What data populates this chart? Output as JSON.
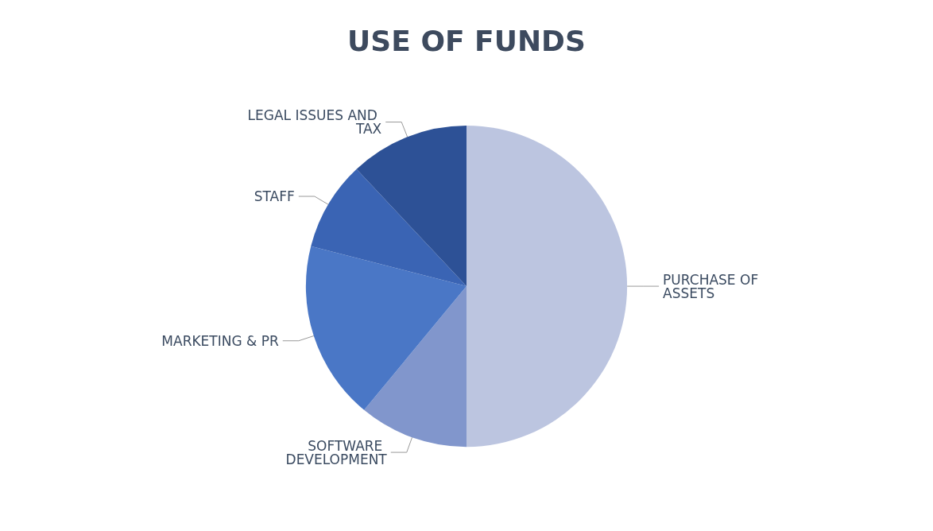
{
  "chart_data": {
    "type": "pie",
    "title": "USE OF FUNDS",
    "categories": [
      "PURCHASE OF ASSETS",
      "SOFTWARE DEVELOPMENT",
      "MARKETING & PR",
      "STAFF",
      "LEGAL ISSUES AND TAX"
    ],
    "values": [
      50,
      11,
      18,
      9,
      12
    ],
    "colors": [
      "#bcc5e0",
      "#8196cc",
      "#4a77c6",
      "#3a64b4",
      "#2d5196"
    ],
    "legend": false
  }
}
